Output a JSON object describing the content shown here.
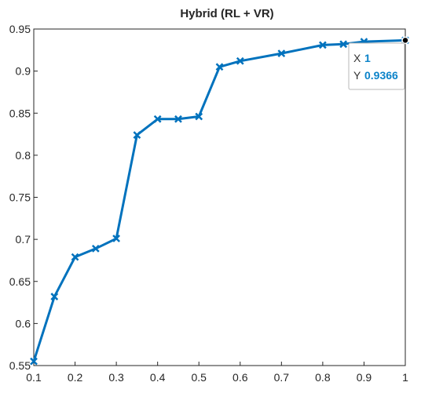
{
  "chart_data": {
    "type": "line",
    "title": "Hybrid (RL + VR)",
    "xlabel": "",
    "ylabel": "",
    "xlim": [
      0.1,
      1
    ],
    "ylim": [
      0.55,
      0.95
    ],
    "grid": false,
    "series_color": "#0072BD",
    "marker": "x",
    "x": [
      0.1,
      0.15,
      0.2,
      0.25,
      0.3,
      0.35,
      0.4,
      0.45,
      0.5,
      0.55,
      0.6,
      0.7,
      0.8,
      0.85,
      0.9,
      1
    ],
    "y": [
      0.555,
      0.632,
      0.679,
      0.689,
      0.701,
      0.824,
      0.843,
      0.843,
      0.846,
      0.905,
      0.912,
      0.921,
      0.931,
      0.932,
      0.935,
      0.9366
    ],
    "xticks": [
      "0.1",
      "0.2",
      "0.3",
      "0.4",
      "0.5",
      "0.6",
      "0.7",
      "0.8",
      "0.9",
      "1"
    ],
    "yticks": [
      "0.55",
      "0.6",
      "0.65",
      "0.7",
      "0.75",
      "0.8",
      "0.85",
      "0.9",
      "0.95"
    ],
    "datatip": {
      "x_label": "X",
      "x_value": "1",
      "y_label": "Y",
      "y_value": "0.9366",
      "point_x": 1,
      "point_y": 0.9366
    }
  }
}
